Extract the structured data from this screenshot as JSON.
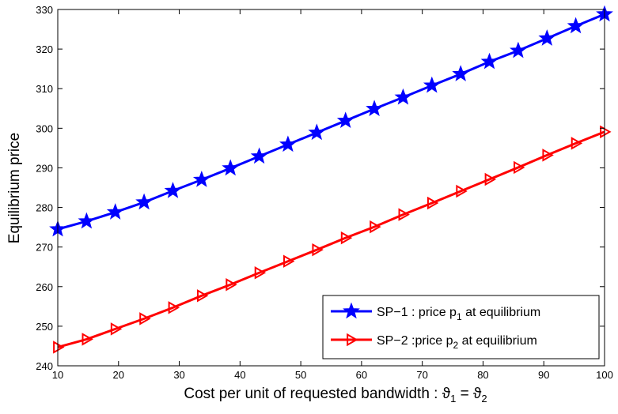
{
  "chart_data": {
    "type": "line",
    "xlabel": "Cost per unit of requested bandwidth",
    "xlabel_math": {
      "sym": "ϑ",
      "sub1": "1",
      "eq": " = ",
      "sub2": "2"
    },
    "ylabel": "Equilibrium price",
    "xlim": [
      10,
      100
    ],
    "ylim": [
      240,
      330
    ],
    "xticks": [
      10,
      20,
      30,
      40,
      50,
      60,
      70,
      80,
      90,
      100
    ],
    "yticks": [
      240,
      250,
      260,
      270,
      280,
      290,
      300,
      310,
      320,
      330
    ],
    "grid": false,
    "legend_position": "bottom-right",
    "x": [
      10,
      14.74,
      19.47,
      24.21,
      28.95,
      33.68,
      38.42,
      43.16,
      47.89,
      52.63,
      57.37,
      62.11,
      66.84,
      71.58,
      76.32,
      81.05,
      85.79,
      90.53,
      95.26,
      100
    ],
    "series": [
      {
        "name": "SP−1 : price p",
        "name_sub": "1",
        "name_suffix": " at equilibrium",
        "color": "#0000ff",
        "marker": "star",
        "values": [
          274.5,
          276.5,
          278.8,
          281.3,
          284.2,
          287.0,
          289.9,
          292.9,
          295.9,
          298.9,
          301.9,
          304.9,
          307.8,
          310.8,
          313.7,
          316.8,
          319.6,
          322.7,
          325.8,
          328.8
        ]
      },
      {
        "name": "SP−2 :price p",
        "name_sub": "2",
        "name_suffix": " at equilibrium",
        "color": "#ff0000",
        "marker": "triangle-right",
        "values": [
          244.7,
          246.7,
          249.3,
          251.9,
          254.7,
          257.7,
          260.5,
          263.5,
          266.4,
          269.3,
          272.3,
          275.1,
          278.2,
          281.1,
          284.1,
          287.1,
          290.1,
          293.2,
          296.2,
          299.1
        ]
      }
    ]
  }
}
